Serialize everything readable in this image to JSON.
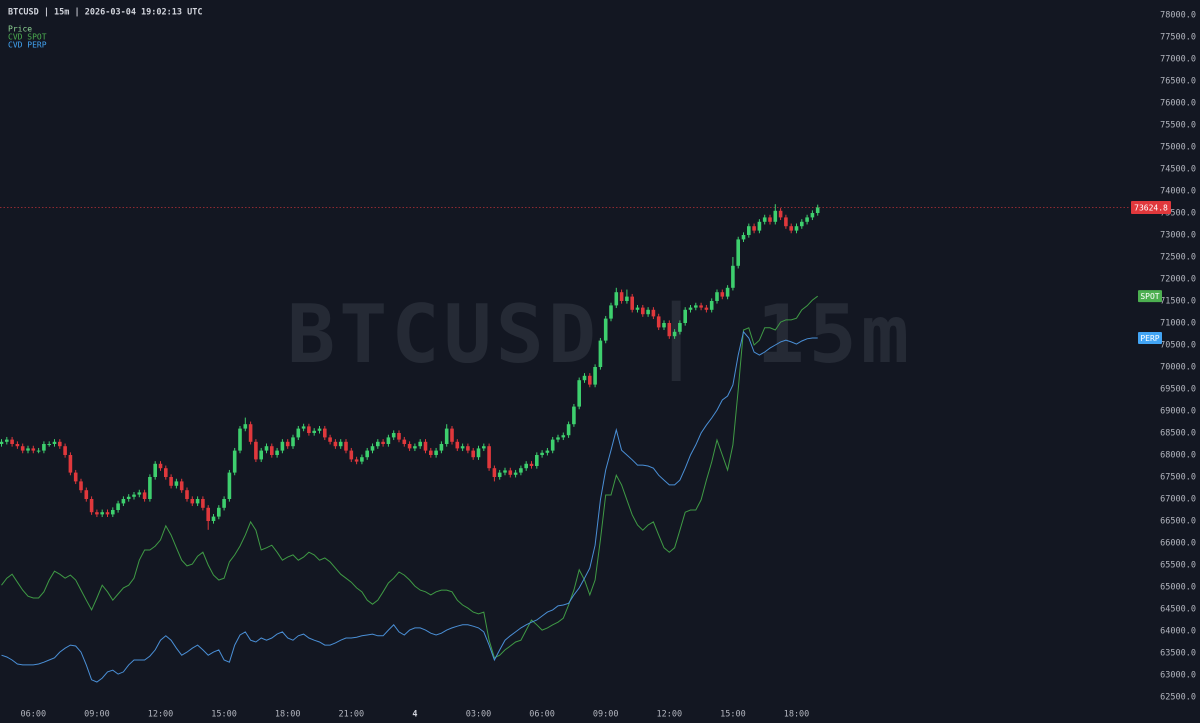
{
  "chart_data": {
    "type": "candlestick",
    "title": "BTCUSD | 15m | 2026-03-04 19:02:13 UTC",
    "watermark": "BTCUSD | 15m",
    "price_name": "Price",
    "price_color": "#8fd694",
    "up_color": "#3ecf6e",
    "down_color": "#e0383c",
    "last_price": 73624.8,
    "last_price_color": "#e0383c",
    "ylim": [
      61909,
      78341
    ],
    "yticks": [
      {
        "value": 62500,
        "label": "62500.0"
      },
      {
        "value": 63000,
        "label": "63000.0"
      },
      {
        "value": 63500,
        "label": "63500.0"
      },
      {
        "value": 64000,
        "label": "64000.0"
      },
      {
        "value": 64500,
        "label": "64500.0"
      },
      {
        "value": 65000,
        "label": "65000.0"
      },
      {
        "value": 65500,
        "label": "65500.0"
      },
      {
        "value": 66000,
        "label": "66000.0"
      },
      {
        "value": 66500,
        "label": "66500.0"
      },
      {
        "value": 67000,
        "label": "67000.0"
      },
      {
        "value": 67500,
        "label": "67500.0"
      },
      {
        "value": 68000,
        "label": "68000.0"
      },
      {
        "value": 68500,
        "label": "68500.0"
      },
      {
        "value": 69000,
        "label": "69000.0"
      },
      {
        "value": 69500,
        "label": "69500.0"
      },
      {
        "value": 70000,
        "label": "70000.0"
      },
      {
        "value": 70500,
        "label": "70500.0"
      },
      {
        "value": 71000,
        "label": "71000.0"
      },
      {
        "value": 71500,
        "label": "71500.0"
      },
      {
        "value": 72000,
        "label": "72000.0"
      },
      {
        "value": 72500,
        "label": "72500.0"
      },
      {
        "value": 73000,
        "label": "73000.0"
      },
      {
        "value": 73500,
        "label": "73500.0"
      },
      {
        "value": 74000,
        "label": "74000.0"
      },
      {
        "value": 74500,
        "label": "74500.0"
      },
      {
        "value": 75000,
        "label": "75000.0"
      },
      {
        "value": 75500,
        "label": "75500.0"
      },
      {
        "value": 76000,
        "label": "76000.0"
      },
      {
        "value": 76500,
        "label": "76500.0"
      },
      {
        "value": 77000,
        "label": "77000.0"
      },
      {
        "value": 77500,
        "label": "77500.0"
      },
      {
        "value": 78000,
        "label": "78000.0"
      }
    ],
    "categories": [
      null,
      null,
      null,
      null,
      null,
      null,
      "06:00",
      null,
      null,
      null,
      null,
      null,
      null,
      null,
      null,
      null,
      null,
      null,
      "09:00",
      null,
      null,
      null,
      null,
      null,
      null,
      null,
      null,
      null,
      null,
      null,
      "12:00",
      null,
      null,
      null,
      null,
      null,
      null,
      null,
      null,
      null,
      null,
      null,
      "15:00",
      null,
      null,
      null,
      null,
      null,
      null,
      null,
      null,
      null,
      null,
      null,
      "18:00",
      null,
      null,
      null,
      null,
      null,
      null,
      null,
      null,
      null,
      null,
      null,
      "21:00",
      null,
      null,
      null,
      null,
      null,
      null,
      null,
      null,
      null,
      null,
      null,
      "4",
      null,
      null,
      null,
      null,
      null,
      null,
      null,
      null,
      null,
      null,
      null,
      "03:00",
      null,
      null,
      null,
      null,
      null,
      null,
      null,
      null,
      null,
      null,
      null,
      "06:00",
      null,
      null,
      null,
      null,
      null,
      null,
      null,
      null,
      null,
      null,
      null,
      "09:00",
      null,
      null,
      null,
      null,
      null,
      null,
      null,
      null,
      null,
      null,
      null,
      "12:00",
      null,
      null,
      null,
      null,
      null,
      null,
      null,
      null,
      null,
      null,
      null,
      "15:00",
      null,
      null,
      null,
      null,
      null,
      null,
      null,
      null,
      null,
      null,
      null,
      "18:00",
      null,
      null,
      null,
      null
    ],
    "open": [
      68250,
      68300,
      68350,
      68250,
      68200,
      68100,
      68150,
      68100,
      68100,
      68250,
      68250,
      68300,
      68200,
      68000,
      67600,
      67400,
      67200,
      67000,
      66700,
      66650,
      66700,
      66650,
      66750,
      66900,
      67000,
      67050,
      67100,
      67150,
      67000,
      67500,
      67800,
      67700,
      67500,
      67300,
      67400,
      67200,
      67000,
      66900,
      67000,
      66800,
      66500,
      66600,
      66800,
      67000,
      67600,
      68100,
      68600,
      68700,
      68300,
      67900,
      68100,
      68200,
      68000,
      68100,
      68300,
      68200,
      68400,
      68600,
      68650,
      68500,
      68550,
      68600,
      68400,
      68300,
      68200,
      68300,
      68100,
      67900,
      67850,
      67950,
      68100,
      68200,
      68300,
      68250,
      68400,
      68500,
      68350,
      68250,
      68150,
      68200,
      68300,
      68100,
      68000,
      68100,
      68250,
      68600,
      68300,
      68150,
      68200,
      68100,
      67950,
      68150,
      68200,
      67700,
      67500,
      67600,
      67650,
      67550,
      67600,
      67700,
      67800,
      67750,
      68000,
      68050,
      68100,
      68350,
      68400,
      68450,
      68700,
      69100,
      69700,
      69800,
      69600,
      70000,
      70600,
      71100,
      71400,
      71700,
      71500,
      71600,
      71300,
      71350,
      71200,
      71300,
      71150,
      70900,
      71000,
      70700,
      70800,
      71000,
      71300,
      71350,
      71400,
      71350,
      71300,
      71500,
      71700,
      71600,
      71800,
      72300,
      72900,
      73000,
      73200,
      73100,
      73300,
      73400,
      73300,
      73550,
      73400,
      73200,
      73100,
      73200,
      73300,
      73400,
      73500
    ],
    "high": [
      68360,
      68410,
      68410,
      68310,
      68260,
      68210,
      68210,
      68160,
      68310,
      68310,
      68360,
      68360,
      68260,
      68060,
      67660,
      67460,
      67260,
      67060,
      66760,
      66760,
      66760,
      66810,
      66960,
      67060,
      67110,
      67160,
      67210,
      67210,
      67560,
      67860,
      67860,
      67760,
      67560,
      67460,
      67460,
      67260,
      67060,
      67060,
      67060,
      66860,
      66660,
      66860,
      67060,
      67660,
      68160,
      68660,
      68850,
      68760,
      68360,
      68160,
      68260,
      68260,
      68160,
      68360,
      68360,
      68460,
      68660,
      68710,
      68710,
      68610,
      68660,
      68660,
      68460,
      68360,
      68360,
      68360,
      68160,
      67960,
      68010,
      68160,
      68260,
      68360,
      68360,
      68460,
      68560,
      68560,
      68410,
      68310,
      68260,
      68360,
      68360,
      68160,
      68160,
      68310,
      68700,
      68660,
      68360,
      68260,
      68260,
      68160,
      68210,
      68260,
      68260,
      67760,
      67660,
      67710,
      67710,
      67660,
      67760,
      67860,
      67860,
      68060,
      68110,
      68160,
      68410,
      68460,
      68510,
      68760,
      69160,
      69760,
      69860,
      69860,
      70060,
      70660,
      71160,
      71460,
      71800,
      71760,
      71760,
      71660,
      71410,
      71410,
      71360,
      71360,
      71210,
      71060,
      71060,
      70860,
      71060,
      71360,
      71410,
      71460,
      71460,
      71410,
      71560,
      71760,
      71760,
      71860,
      72500,
      72960,
      73060,
      73260,
      73260,
      73360,
      73460,
      73460,
      73700,
      73610,
      73460,
      73260,
      73260,
      73360,
      73460,
      73560,
      73690
    ],
    "low": [
      68190,
      68240,
      68190,
      68140,
      68040,
      68040,
      68040,
      68040,
      68040,
      68190,
      68190,
      68140,
      67940,
      67540,
      67340,
      67140,
      66940,
      66640,
      66590,
      66590,
      66590,
      66590,
      66690,
      66840,
      66940,
      66990,
      67040,
      66940,
      66940,
      67440,
      67640,
      67440,
      67240,
      67240,
      67140,
      66940,
      66840,
      66840,
      66740,
      66300,
      66440,
      66540,
      66740,
      66940,
      67540,
      68040,
      68540,
      68240,
      67840,
      67840,
      68040,
      67940,
      67940,
      68040,
      68140,
      68140,
      68340,
      68540,
      68440,
      68440,
      68490,
      68340,
      68240,
      68140,
      68140,
      68040,
      67840,
      67790,
      67790,
      67890,
      68040,
      68140,
      68190,
      68190,
      68340,
      68290,
      68190,
      68090,
      68090,
      68140,
      68040,
      67940,
      67940,
      68040,
      68190,
      68240,
      68090,
      68090,
      68040,
      67890,
      67890,
      68090,
      67640,
      67400,
      67440,
      67540,
      67490,
      67490,
      67540,
      67640,
      67690,
      67690,
      67940,
      67990,
      68040,
      68290,
      68340,
      68390,
      68640,
      69040,
      69640,
      69540,
      69540,
      69940,
      70540,
      71040,
      71340,
      71440,
      71440,
      71240,
      71240,
      71140,
      71140,
      71090,
      70840,
      70840,
      70640,
      70640,
      70740,
      70940,
      71240,
      71290,
      71290,
      71240,
      71240,
      71440,
      71540,
      71540,
      71740,
      72240,
      72840,
      72940,
      73040,
      73040,
      73240,
      73240,
      73240,
      73340,
      73140,
      73040,
      73040,
      73140,
      73240,
      73340,
      73440
    ],
    "close": [
      68300,
      68350,
      68250,
      68200,
      68100,
      68150,
      68100,
      68100,
      68250,
      68250,
      68300,
      68200,
      68000,
      67600,
      67400,
      67200,
      67000,
      66700,
      66650,
      66700,
      66650,
      66750,
      66900,
      67000,
      67050,
      67100,
      67150,
      67000,
      67500,
      67800,
      67700,
      67500,
      67300,
      67400,
      67200,
      67000,
      66900,
      67000,
      66800,
      66500,
      66600,
      66800,
      67000,
      67600,
      68100,
      68600,
      68700,
      68300,
      67900,
      68100,
      68200,
      68000,
      68100,
      68300,
      68200,
      68400,
      68600,
      68650,
      68500,
      68550,
      68600,
      68400,
      68300,
      68200,
      68300,
      68100,
      67900,
      67850,
      67950,
      68100,
      68200,
      68300,
      68250,
      68400,
      68500,
      68350,
      68250,
      68150,
      68200,
      68300,
      68100,
      68000,
      68100,
      68250,
      68600,
      68300,
      68150,
      68200,
      68100,
      67950,
      68150,
      68200,
      67700,
      67500,
      67600,
      67650,
      67550,
      67600,
      67700,
      67800,
      67750,
      68000,
      68050,
      68100,
      68350,
      68400,
      68450,
      68700,
      69100,
      69700,
      69800,
      69600,
      70000,
      70600,
      71100,
      71400,
      71700,
      71500,
      71600,
      71300,
      71350,
      71200,
      71300,
      71150,
      70900,
      71000,
      70700,
      70800,
      71000,
      71300,
      71350,
      71400,
      71350,
      71300,
      71500,
      71700,
      71600,
      71800,
      72300,
      72900,
      73000,
      73200,
      73100,
      73300,
      73400,
      73300,
      73550,
      73400,
      73200,
      73100,
      73200,
      73300,
      73400,
      73500,
      73624.8
    ],
    "series": [
      {
        "name": "CVD SPOT",
        "badge": "SPOT",
        "color": "#3f9a45",
        "badge_color": "#4caf50",
        "values": [
          65040,
          65200,
          65290,
          65110,
          64930,
          64790,
          64750,
          64750,
          64890,
          65160,
          65360,
          65290,
          65200,
          65270,
          65160,
          64930,
          64700,
          64480,
          64750,
          65040,
          64890,
          64700,
          64840,
          64980,
          65040,
          65200,
          65610,
          65840,
          65840,
          65930,
          66070,
          66390,
          66180,
          65890,
          65610,
          65480,
          65520,
          65700,
          65790,
          65500,
          65270,
          65160,
          65200,
          65570,
          65730,
          65930,
          66180,
          66480,
          66290,
          65840,
          65890,
          65950,
          65790,
          65610,
          65680,
          65730,
          65610,
          65680,
          65790,
          65730,
          65610,
          65660,
          65570,
          65430,
          65290,
          65200,
          65110,
          64980,
          64890,
          64700,
          64610,
          64700,
          64890,
          65090,
          65200,
          65340,
          65270,
          65160,
          65020,
          64930,
          64890,
          64820,
          64890,
          64930,
          64930,
          64890,
          64700,
          64590,
          64520,
          64430,
          64390,
          64430,
          63790,
          63390,
          63450,
          63570,
          63660,
          63750,
          63790,
          64020,
          64250,
          64140,
          64020,
          64070,
          64140,
          64200,
          64290,
          64590,
          64930,
          65390,
          65160,
          64820,
          65160,
          66070,
          67090,
          67090,
          67540,
          67320,
          66980,
          66640,
          66410,
          66290,
          66410,
          66480,
          66180,
          65890,
          65790,
          65890,
          66290,
          66700,
          66750,
          66750,
          66980,
          67430,
          67840,
          68340,
          68000,
          67660,
          68230,
          69480,
          70840,
          70890,
          70500,
          70610,
          70890,
          70890,
          70840,
          71020,
          71070,
          71070,
          71110,
          71300,
          71390,
          71520,
          71610
        ]
      },
      {
        "name": "CVD PERP",
        "badge": "PERP",
        "color": "#4a8fd6",
        "badge_color": "#42a5f5",
        "values": [
          63450,
          63410,
          63340,
          63250,
          63230,
          63230,
          63230,
          63250,
          63290,
          63340,
          63390,
          63520,
          63610,
          63680,
          63660,
          63520,
          63230,
          62890,
          62840,
          62930,
          63070,
          63110,
          63020,
          63070,
          63230,
          63340,
          63340,
          63340,
          63430,
          63570,
          63790,
          63890,
          63790,
          63610,
          63450,
          63520,
          63610,
          63680,
          63570,
          63450,
          63520,
          63570,
          63340,
          63290,
          63680,
          63910,
          63980,
          63790,
          63750,
          63840,
          63790,
          63840,
          63930,
          63980,
          63840,
          63790,
          63890,
          63930,
          63840,
          63790,
          63750,
          63680,
          63680,
          63730,
          63790,
          63840,
          63840,
          63860,
          63890,
          63910,
          63930,
          63890,
          63890,
          64020,
          64140,
          63980,
          63910,
          64020,
          64070,
          64070,
          64020,
          63950,
          63910,
          63950,
          64020,
          64070,
          64110,
          64140,
          64140,
          64110,
          64070,
          63980,
          63680,
          63340,
          63570,
          63790,
          63890,
          63980,
          64070,
          64140,
          64200,
          64250,
          64340,
          64430,
          64480,
          64570,
          64590,
          64630,
          64820,
          64980,
          65200,
          65430,
          65950,
          66980,
          67660,
          68110,
          68570,
          68110,
          68000,
          67890,
          67770,
          67770,
          67750,
          67700,
          67540,
          67430,
          67320,
          67320,
          67430,
          67700,
          68000,
          68230,
          68500,
          68680,
          68840,
          69020,
          69250,
          69340,
          69590,
          70270,
          70800,
          70660,
          70340,
          70270,
          70340,
          70430,
          70500,
          70570,
          70610,
          70570,
          70520,
          70590,
          70640,
          70660,
          70660
        ]
      }
    ]
  }
}
